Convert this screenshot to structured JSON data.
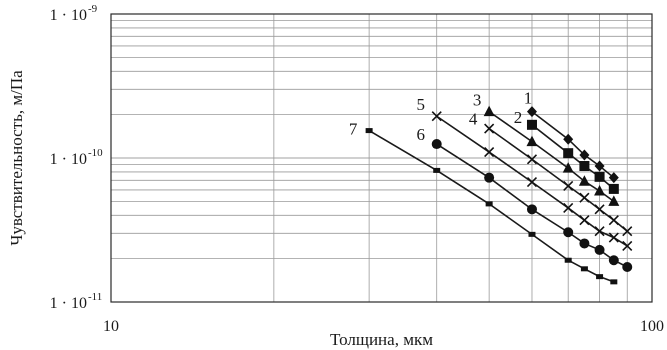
{
  "chart_data": {
    "type": "line",
    "xlabel": "Толщина, мкм",
    "ylabel": "Чувствительность, м/Па",
    "x_scale": "log",
    "y_scale": "log",
    "xlim": [
      10,
      100
    ],
    "ylim": [
      1e-11,
      1e-09
    ],
    "grid": true,
    "x_ticks": [
      {
        "value": 10,
        "label": "10"
      },
      {
        "value": 100,
        "label": "100"
      }
    ],
    "y_ticks": [
      {
        "value": 1e-11,
        "prefix": "1 · 10",
        "exponent": "-11"
      },
      {
        "value": 1e-10,
        "prefix": "1 · 10",
        "exponent": "-10"
      },
      {
        "value": 1e-09,
        "prefix": "1 · 10",
        "exponent": "-9"
      }
    ],
    "series": [
      {
        "name": "1",
        "marker": "diamond",
        "x": [
          60,
          70,
          75,
          80,
          85
        ],
        "y": [
          2.1e-10,
          1.35e-10,
          1.05e-10,
          8.8e-11,
          7.3e-11
        ]
      },
      {
        "name": "2",
        "marker": "square",
        "x": [
          60,
          70,
          75,
          80,
          85
        ],
        "y": [
          1.7e-10,
          1.08e-10,
          8.8e-11,
          7.4e-11,
          6.1e-11
        ]
      },
      {
        "name": "3",
        "marker": "triangle",
        "x": [
          50,
          60,
          70,
          75,
          80,
          85
        ],
        "y": [
          2.1e-10,
          1.3e-10,
          8.5e-11,
          6.9e-11,
          5.9e-11,
          5e-11
        ]
      },
      {
        "name": "4",
        "marker": "cross",
        "x": [
          50,
          60,
          70,
          75,
          80,
          85,
          90
        ],
        "y": [
          1.6e-10,
          9.8e-11,
          6.4e-11,
          5.3e-11,
          4.4e-11,
          3.7e-11,
          3.1e-11
        ]
      },
      {
        "name": "5",
        "marker": "cross",
        "x": [
          40,
          50,
          60,
          70,
          75,
          80,
          85,
          90
        ],
        "y": [
          1.95e-10,
          1.1e-10,
          6.8e-11,
          4.5e-11,
          3.7e-11,
          3.1e-11,
          2.8e-11,
          2.45e-11
        ]
      },
      {
        "name": "6",
        "marker": "circle",
        "x": [
          40,
          50,
          60,
          70,
          75,
          80,
          85,
          90
        ],
        "y": [
          1.25e-10,
          7.3e-11,
          4.4e-11,
          3.05e-11,
          2.55e-11,
          2.3e-11,
          1.95e-11,
          1.75e-11
        ]
      },
      {
        "name": "7",
        "marker": "small-square",
        "x": [
          30,
          40,
          50,
          60,
          70,
          75,
          80,
          85
        ],
        "y": [
          1.55e-10,
          8.2e-11,
          4.8e-11,
          2.95e-11,
          1.95e-11,
          1.7e-11,
          1.5e-11,
          1.38e-11
        ]
      }
    ]
  }
}
